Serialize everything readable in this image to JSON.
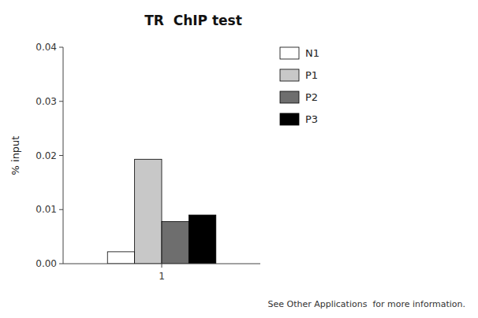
{
  "chart_data": {
    "type": "bar",
    "title": "TR  ChIP test",
    "y_label": "% input",
    "categories": [
      "1"
    ],
    "series": [
      {
        "name": "N1",
        "color": "#ffffff",
        "values": [
          0.0022
        ]
      },
      {
        "name": "P1",
        "color": "#c8c8c8",
        "values": [
          0.0193
        ]
      },
      {
        "name": "P2",
        "color": "#6e6e6e",
        "values": [
          0.0078
        ]
      },
      {
        "name": "P3",
        "color": "#000000",
        "values": [
          0.009
        ]
      }
    ],
    "ylim": [
      0,
      0.04
    ],
    "yticks": [
      {
        "value": 0,
        "label": "0.00"
      },
      0.01,
      0.02,
      0.03,
      0.04
    ],
    "grid": false,
    "legend": "right",
    "annotations": [
      "See Other Applications  for more information."
    ]
  }
}
